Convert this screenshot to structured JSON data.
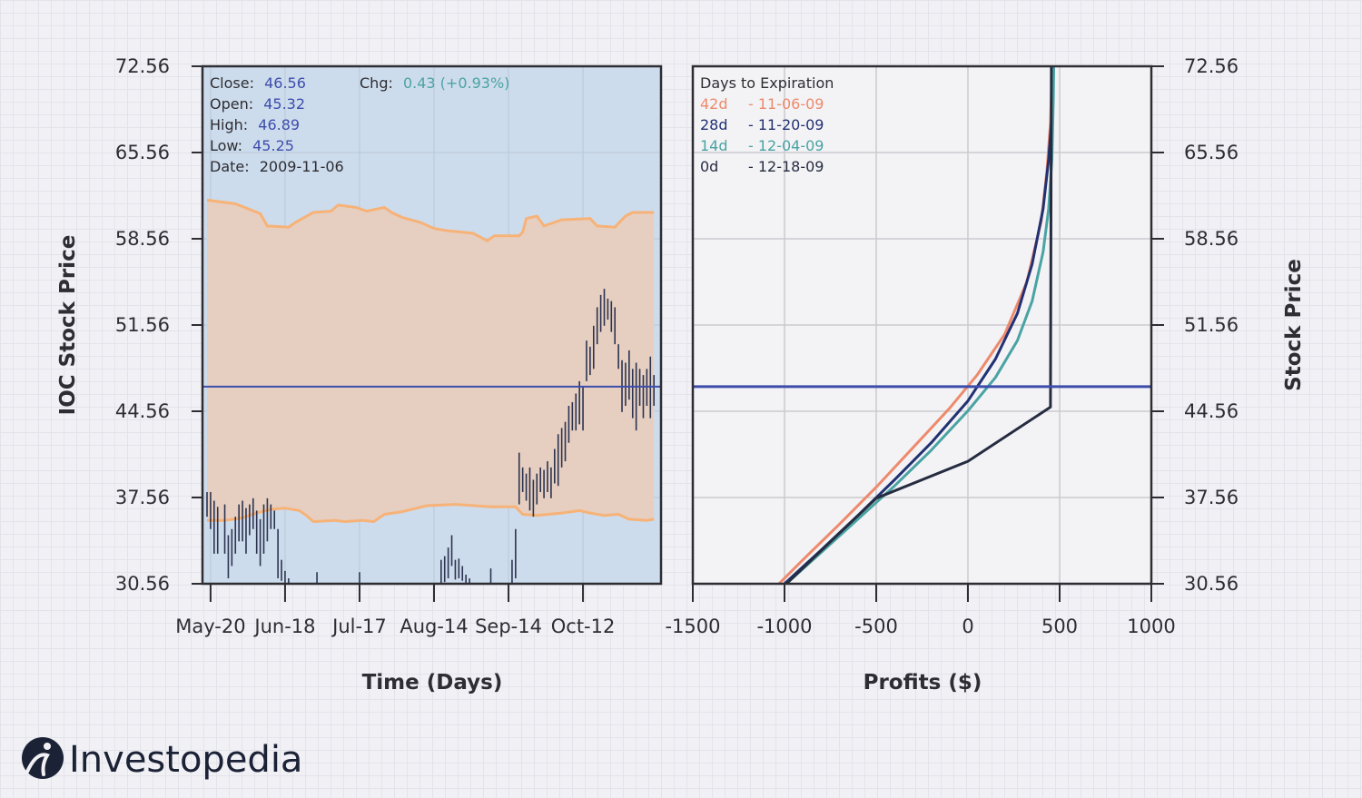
{
  "colors": {
    "panel_bg": "#cddcec",
    "band_fill": "#e6cfc0",
    "band_line": "#f7b278",
    "price_bar": "#2c3350",
    "close_line": "#3d4dab",
    "frame": "#2d2d33",
    "grid": "#c9c9cf",
    "label_blue": "#3d4dab",
    "label_teal": "#4aa3a3",
    "c42": "#ee8a6c",
    "c28": "#223172",
    "c14": "#7eb7b8",
    "c0": "#262c40"
  },
  "info": {
    "close_label": "Close:",
    "close_value": "46.56",
    "open_label": "Open:",
    "open_value": "45.32",
    "high_label": "High:",
    "high_value": "46.89",
    "low_label": "Low:",
    "low_value": "45.25",
    "date_label": "Date:",
    "date_value": "2009-11-06",
    "chg_label": "Chg:",
    "chg_value": "0.43 (+0.93%)"
  },
  "legend": {
    "title": "Days to Expiration",
    "entries": [
      {
        "days": "42d",
        "date": "- 11-06-09",
        "color": "#ee8a6c"
      },
      {
        "days": "28d",
        "date": "- 11-20-09",
        "color": "#223172"
      },
      {
        "days": "14d",
        "date": "- 12-04-09",
        "color": "#4aa3a3"
      },
      {
        "days": "0d",
        "date": "- 12-18-09",
        "color": "#262c40"
      }
    ]
  },
  "logo": {
    "text": "Investopedia"
  },
  "chart_data": [
    {
      "type": "bar",
      "subtype": "ohlc_with_band",
      "xlabel": "Time (Days)",
      "ylabel": "IOC Stock Price",
      "ylim": [
        30.56,
        72.56
      ],
      "yticks": [
        "30.56",
        "37.56",
        "44.56",
        "51.56",
        "58.56",
        "65.56",
        "72.56"
      ],
      "xlim": [
        0,
        128
      ],
      "xticks": [
        {
          "label": "May-20",
          "day": 1
        },
        {
          "label": "Jun-18",
          "day": 22
        },
        {
          "label": "Jul-17",
          "day": 43
        },
        {
          "label": "Aug-14",
          "day": 64
        },
        {
          "label": "Sep-14",
          "day": 85
        },
        {
          "label": "Oct-12",
          "day": 106
        }
      ],
      "close_price": 46.56,
      "band_upper_points": [
        [
          0,
          61.7
        ],
        [
          8,
          61.4
        ],
        [
          15,
          60.6
        ],
        [
          17,
          59.6
        ],
        [
          23,
          59.5
        ],
        [
          25,
          59.9
        ],
        [
          30,
          60.7
        ],
        [
          35,
          60.8
        ],
        [
          37,
          61.3
        ],
        [
          42,
          61.1
        ],
        [
          45,
          60.8
        ],
        [
          50,
          61.1
        ],
        [
          52,
          60.7
        ],
        [
          55,
          60.3
        ],
        [
          60,
          59.9
        ],
        [
          64,
          59.4
        ],
        [
          68,
          59.2
        ],
        [
          72,
          59.1
        ],
        [
          75,
          59.0
        ],
        [
          77,
          58.7
        ],
        [
          79,
          58.4
        ],
        [
          81,
          58.8
        ],
        [
          88,
          58.8
        ],
        [
          89,
          59.1
        ],
        [
          90,
          60.2
        ],
        [
          93,
          60.4
        ],
        [
          95,
          59.6
        ],
        [
          100,
          60.1
        ],
        [
          108,
          60.2
        ],
        [
          110,
          59.6
        ],
        [
          115,
          59.5
        ],
        [
          118,
          60.4
        ],
        [
          120,
          60.7
        ],
        [
          126,
          60.7
        ]
      ],
      "band_lower_points": [
        [
          0,
          35.7
        ],
        [
          5,
          35.7
        ],
        [
          10,
          35.9
        ],
        [
          14,
          36.3
        ],
        [
          18,
          36.6
        ],
        [
          22,
          36.7
        ],
        [
          26,
          36.5
        ],
        [
          28,
          36.1
        ],
        [
          30,
          35.6
        ],
        [
          36,
          35.7
        ],
        [
          39,
          35.6
        ],
        [
          44,
          35.7
        ],
        [
          47,
          35.6
        ],
        [
          50,
          36.2
        ],
        [
          55,
          36.4
        ],
        [
          62,
          36.9
        ],
        [
          70,
          37.0
        ],
        [
          80,
          36.8
        ],
        [
          87,
          36.8
        ],
        [
          89,
          36.2
        ],
        [
          93,
          36.1
        ],
        [
          100,
          36.3
        ],
        [
          105,
          36.5
        ],
        [
          108,
          36.3
        ],
        [
          112,
          36.1
        ],
        [
          116,
          36.2
        ],
        [
          119,
          35.8
        ],
        [
          124,
          35.7
        ],
        [
          126,
          35.8
        ]
      ],
      "ohlc_bars": [
        [
          0,
          36,
          38
        ],
        [
          1,
          35,
          38
        ],
        [
          2,
          33,
          37.3
        ],
        [
          3,
          33,
          36.8
        ],
        [
          5,
          33,
          37
        ],
        [
          6,
          31,
          34.5
        ],
        [
          7,
          32,
          35
        ],
        [
          8,
          33,
          36
        ],
        [
          9,
          34,
          37
        ],
        [
          10,
          34,
          37.3
        ],
        [
          11,
          33,
          36.7
        ],
        [
          12,
          34.5,
          37
        ],
        [
          13,
          35,
          37.5
        ],
        [
          14,
          33,
          36.5
        ],
        [
          15,
          32,
          35.8
        ],
        [
          16,
          33,
          37
        ],
        [
          17,
          34,
          37.5
        ],
        [
          18,
          35,
          37
        ],
        [
          19,
          35,
          36.5
        ],
        [
          20,
          31,
          35
        ],
        [
          21,
          30.8,
          32.5
        ],
        [
          22,
          30.5,
          31.6
        ],
        [
          23,
          30.4,
          31
        ],
        [
          31,
          30.5,
          31.5
        ],
        [
          43,
          30.5,
          31.5
        ],
        [
          66,
          30.5,
          32.5
        ],
        [
          67,
          30.7,
          32.8
        ],
        [
          68,
          31,
          33.5
        ],
        [
          69,
          32,
          34.5
        ],
        [
          70,
          30.9,
          32.5
        ],
        [
          71,
          31,
          32.6
        ],
        [
          72,
          30.8,
          32
        ],
        [
          73,
          30.5,
          31.3
        ],
        [
          74,
          30.5,
          31
        ],
        [
          80,
          30.5,
          31.8
        ],
        [
          86,
          30.6,
          32.5
        ],
        [
          87,
          31,
          35
        ],
        [
          88,
          37,
          41.2
        ],
        [
          89,
          38,
          40
        ],
        [
          90,
          37.3,
          39.5
        ],
        [
          91,
          36.5,
          40
        ],
        [
          92,
          36,
          39
        ],
        [
          93,
          37,
          39.5
        ],
        [
          94,
          38,
          40
        ],
        [
          95,
          37.5,
          39.8
        ],
        [
          96,
          38,
          40.5
        ],
        [
          97,
          37.5,
          40
        ],
        [
          98,
          38.7,
          41.5
        ],
        [
          99,
          38.5,
          42.7
        ],
        [
          100,
          40,
          43.2
        ],
        [
          101,
          40.5,
          43.7
        ],
        [
          102,
          42,
          45
        ],
        [
          103,
          43,
          45.3
        ],
        [
          104,
          43,
          46
        ],
        [
          105,
          43.5,
          47
        ],
        [
          106,
          43,
          46.5
        ],
        [
          107,
          47,
          50.3
        ],
        [
          108,
          47.5,
          49.8
        ],
        [
          109,
          48,
          51.5
        ],
        [
          110,
          50,
          53
        ],
        [
          111,
          51,
          54
        ],
        [
          112,
          51.5,
          54.5
        ],
        [
          113,
          52,
          53.7
        ],
        [
          114,
          51,
          53.5
        ],
        [
          115,
          50,
          53
        ],
        [
          116,
          48,
          50
        ],
        [
          117,
          44.5,
          48.7
        ],
        [
          118,
          45,
          48.5
        ],
        [
          119,
          45.5,
          49.5
        ],
        [
          120,
          44,
          48
        ],
        [
          121,
          43,
          48.5
        ],
        [
          122,
          45,
          48
        ],
        [
          123,
          44,
          47.5
        ],
        [
          124,
          45,
          48
        ],
        [
          125,
          44,
          49
        ],
        [
          126,
          45,
          47.5
        ]
      ]
    },
    {
      "type": "line",
      "xlabel": "Profits ($)",
      "ylabel": "Stock Price",
      "xlim": [
        -1500,
        1000
      ],
      "xticks": [
        "-1500",
        "-1000",
        "-500",
        "0",
        "500",
        "1000"
      ],
      "ylim": [
        30.56,
        72.56
      ],
      "yticks": [
        "30.56",
        "37.56",
        "44.56",
        "51.56",
        "58.56",
        "65.56",
        "72.56"
      ],
      "close_price": 46.56,
      "series": [
        {
          "name": "42d",
          "color": "#ee8a6c",
          "points": [
            [
              -1030,
              30.56
            ],
            [
              -900,
              32.5
            ],
            [
              -700,
              35.4
            ],
            [
              -500,
              38.4
            ],
            [
              -300,
              41.6
            ],
            [
              -100,
              44.8
            ],
            [
              50,
              47.5
            ],
            [
              200,
              50.8
            ],
            [
              320,
              55
            ],
            [
              400,
              60
            ],
            [
              430,
              64
            ],
            [
              450,
              68
            ],
            [
              460,
              72.56
            ]
          ]
        },
        {
          "name": "28d",
          "color": "#223172",
          "points": [
            [
              -1000,
              30.56
            ],
            [
              -800,
              33.3
            ],
            [
              -600,
              36.1
            ],
            [
              -400,
              39.0
            ],
            [
              -200,
              42.0
            ],
            [
              0,
              45.4
            ],
            [
              150,
              48.8
            ],
            [
              270,
              52.5
            ],
            [
              350,
              56.5
            ],
            [
              410,
              61
            ],
            [
              440,
              65
            ],
            [
              460,
              69
            ],
            [
              468,
              72.56
            ]
          ]
        },
        {
          "name": "14d",
          "color": "#4aa3a3",
          "points": [
            [
              -990,
              30.56
            ],
            [
              -800,
              33.1
            ],
            [
              -600,
              35.8
            ],
            [
              -400,
              38.5
            ],
            [
              -200,
              41.4
            ],
            [
              0,
              44.6
            ],
            [
              150,
              47.3
            ],
            [
              270,
              50.3
            ],
            [
              350,
              53.5
            ],
            [
              410,
              57.5
            ],
            [
              440,
              61
            ],
            [
              458,
              65
            ],
            [
              466,
              70
            ],
            [
              468,
              72.56
            ]
          ]
        },
        {
          "name": "0d",
          "color": "#262c40",
          "points": [
            [
              -990,
              30.56
            ],
            [
              -500,
              37.5
            ],
            [
              0,
              40.5
            ],
            [
              450,
              44.9
            ],
            [
              455,
              72.56
            ]
          ]
        }
      ]
    }
  ]
}
